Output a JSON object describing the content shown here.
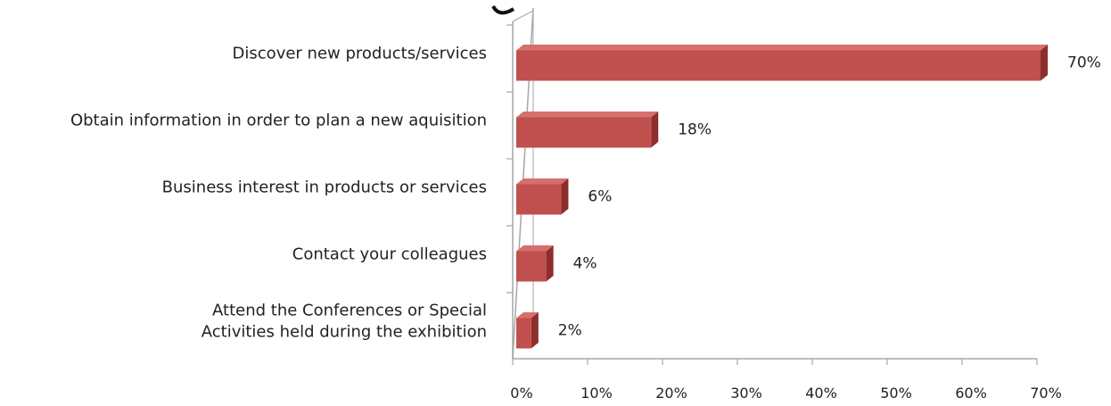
{
  "chart_data": {
    "type": "bar",
    "orientation": "horizontal",
    "style": "3d",
    "title": "",
    "xlabel": "",
    "ylabel": "",
    "categories": [
      "Discover new products/services",
      "Obtain information in order to plan a new aquisition",
      "Business interest in products or services",
      "Contact your colleagues",
      "Attend the Conferences or Special Activities held during the exhibition"
    ],
    "category_label_lines": [
      [
        "Discover new products/services"
      ],
      [
        "Obtain information in order to plan a new aquisition"
      ],
      [
        "Business interest in products or services"
      ],
      [
        "Contact your colleagues"
      ],
      [
        "Attend the Conferences or Special",
        "Activities held during the exhibition"
      ]
    ],
    "values": [
      70,
      18,
      6,
      4,
      2
    ],
    "data_labels": [
      "70%",
      "18%",
      "6%",
      "4%",
      "2%"
    ],
    "xlim": [
      0,
      70
    ],
    "xticks": [
      0,
      10,
      20,
      30,
      40,
      50,
      60,
      70
    ],
    "xtick_labels": [
      "0%",
      "10%",
      "20%",
      "30%",
      "40%",
      "50%",
      "60%",
      "70%"
    ],
    "grid": false,
    "legend": "none",
    "colors": {
      "bar_front": "#c0504d",
      "bar_top": "#d5706c",
      "bar_side": "#8e2e2c",
      "axis": "#a6a6a6",
      "text": "#222222"
    }
  }
}
